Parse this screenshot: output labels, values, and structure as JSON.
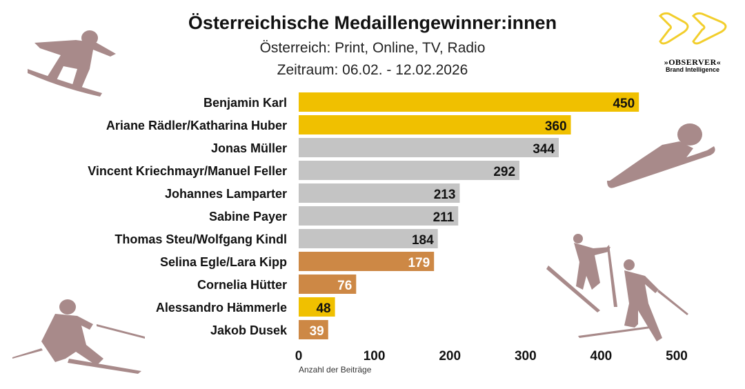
{
  "chart_data": {
    "type": "bar",
    "orientation": "horizontal",
    "title": "Österreichische Medaillengewinner:innen",
    "subtitle": [
      "Österreich: Print, Online, TV, Radio",
      "Zeitraum: 06.02. - 12.02.2026"
    ],
    "xlabel": "Anzahl der Beiträge",
    "xlim": [
      0,
      500
    ],
    "xticks": [
      0,
      100,
      200,
      300,
      400,
      500
    ],
    "grid": false,
    "categories": [
      "Benjamin Karl",
      "Ariane Rädler/Katharina Huber",
      "Jonas Müller",
      "Vincent Kriechmayr/Manuel Feller",
      "Johannes Lamparter",
      "Sabine Payer",
      "Thomas Steu/Wolfgang Kindl",
      "Selina Egle/Lara Kipp",
      "Cornelia Hütter",
      "Alessandro Hämmerle",
      "Jakob Dusek"
    ],
    "values": [
      450,
      360,
      344,
      292,
      213,
      211,
      184,
      179,
      76,
      48,
      39
    ],
    "medal": [
      "gold",
      "gold",
      "silver",
      "silver",
      "silver",
      "silver",
      "silver",
      "bronze",
      "bronze",
      "gold",
      "bronze"
    ]
  },
  "colors": {
    "gold": "#F0C000",
    "silver": "#C4C4C4",
    "bronze": "#CD8845",
    "silhouette": "#A88A8A"
  },
  "logo": {
    "name": "»OBSERVER«",
    "tagline": "Brand Intelligence"
  }
}
